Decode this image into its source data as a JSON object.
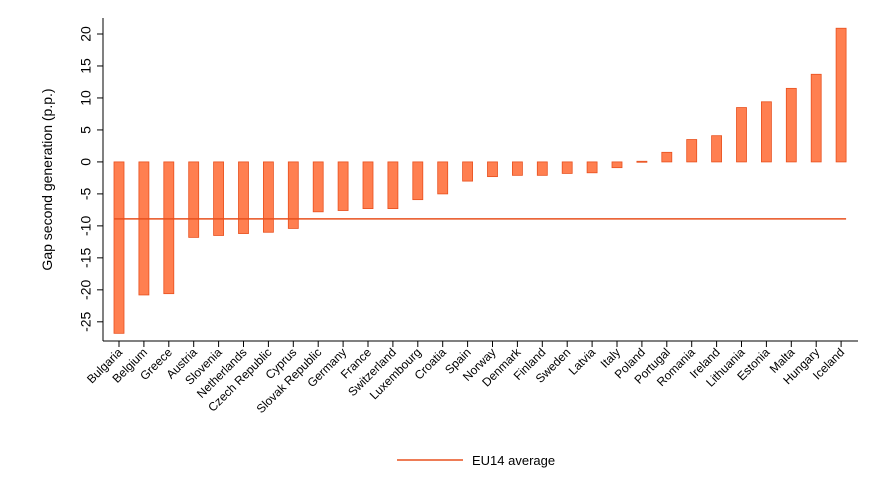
{
  "chart_data": {
    "type": "bar",
    "ylabel": "Gap second generation (p.p.)",
    "xlabel": "",
    "ylim": [
      -28,
      22.5
    ],
    "yticks": [
      -25,
      -20,
      -15,
      -10,
      -5,
      0,
      5,
      10,
      15,
      20
    ],
    "categories": [
      "Bulgaria",
      "Belgium",
      "Greece",
      "Austria",
      "Slovenia",
      "Netherlands",
      "Czech Republic",
      "Cyprus",
      "Slovak Republic",
      "Germany",
      "France",
      "Switzerland",
      "Luxembourg",
      "Croatia",
      "Spain",
      "Norway",
      "Denmark",
      "Finland",
      "Sweden",
      "Latvia",
      "Italy",
      "Poland",
      "Portugal",
      "Romania",
      "Ireland",
      "Lithuania",
      "Estonia",
      "Malta",
      "Hungary",
      "Iceland"
    ],
    "series": [
      {
        "values": [
          -26.8,
          -20.8,
          -20.6,
          -11.8,
          -11.5,
          -11.2,
          -11.0,
          -10.4,
          -7.8,
          -7.6,
          -7.3,
          -7.3,
          -5.9,
          -5.0,
          -3.0,
          -2.3,
          -2.1,
          -2.1,
          -1.8,
          -1.7,
          -0.9,
          0.1,
          1.5,
          3.5,
          4.1,
          8.5,
          9.4,
          11.5,
          13.7,
          20.9
        ],
        "color": "#FF7F50",
        "edge_color": "#E8501E"
      }
    ],
    "reference_lines": [
      {
        "name": "EU14 average",
        "value": -8.9,
        "color": "#E8501E"
      }
    ],
    "legend": {
      "position": "bottom",
      "entries": [
        "EU14 average"
      ]
    },
    "grid": false
  }
}
